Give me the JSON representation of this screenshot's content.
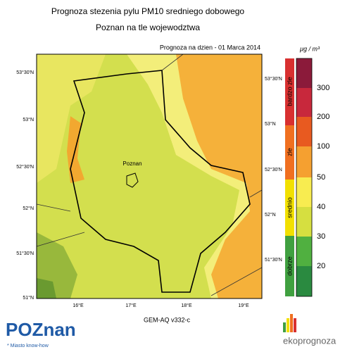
{
  "title": {
    "line1": "Prognoza stezenia pylu PM10 sredniego dobowego",
    "line2": "Poznan na tle wojewodztwa"
  },
  "forecast_date": "Prognoza na dzien -  01 Marca 2014",
  "unit": "μg / m³",
  "map": {
    "left_lat_labels": [
      "53°30'N",
      "53°N",
      "52°30'N",
      "52°N",
      "51°30'N",
      "51°N"
    ],
    "right_lat_labels": [
      "53°30'N",
      "53°N",
      "52°30'N",
      "52°N",
      "51°30'N"
    ],
    "lon_labels": [
      "16°E",
      "17°E",
      "18°E",
      "19°E"
    ],
    "city_label": "Poznan"
  },
  "model": "GEM-AQ v332-c",
  "legend": {
    "categories": [
      "bardzo zle",
      "zle",
      "srednio",
      "dobrze"
    ],
    "ticks": [
      300,
      200,
      100,
      50,
      40,
      30,
      20
    ]
  },
  "logos": {
    "poznan": "POZnan",
    "poznan_tagline": "* Miasto know-how",
    "ekoprognoza": "ekoprognoza"
  }
}
